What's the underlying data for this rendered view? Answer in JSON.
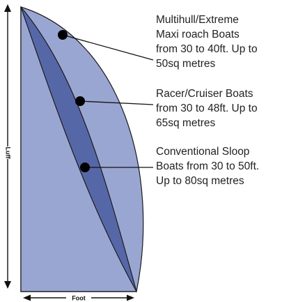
{
  "colors": {
    "outer_sail": "#9AA6D2",
    "middle_sail": "#5667A8",
    "inner_sail": "#9AA6D2",
    "outline": "#1a1a1a",
    "leader": "#111111"
  },
  "dimensions": {
    "luff_label": "Luff",
    "foot_label": "Foot"
  },
  "callouts": [
    {
      "id": "multihull",
      "lines": [
        "Multihull/Extreme",
        "Maxi roach Boats",
        "from 30 to 40ft. Up to",
        "50sq metres"
      ]
    },
    {
      "id": "racer-cruiser",
      "lines": [
        "Racer/Cruiser Boats",
        "from 30 to 48ft. Up to",
        "65sq metres"
      ]
    },
    {
      "id": "conventional-sloop",
      "lines": [
        "Conventional Sloop",
        "Boats from 30 to 50ft.",
        "Up to 80sq metres"
      ]
    }
  ]
}
